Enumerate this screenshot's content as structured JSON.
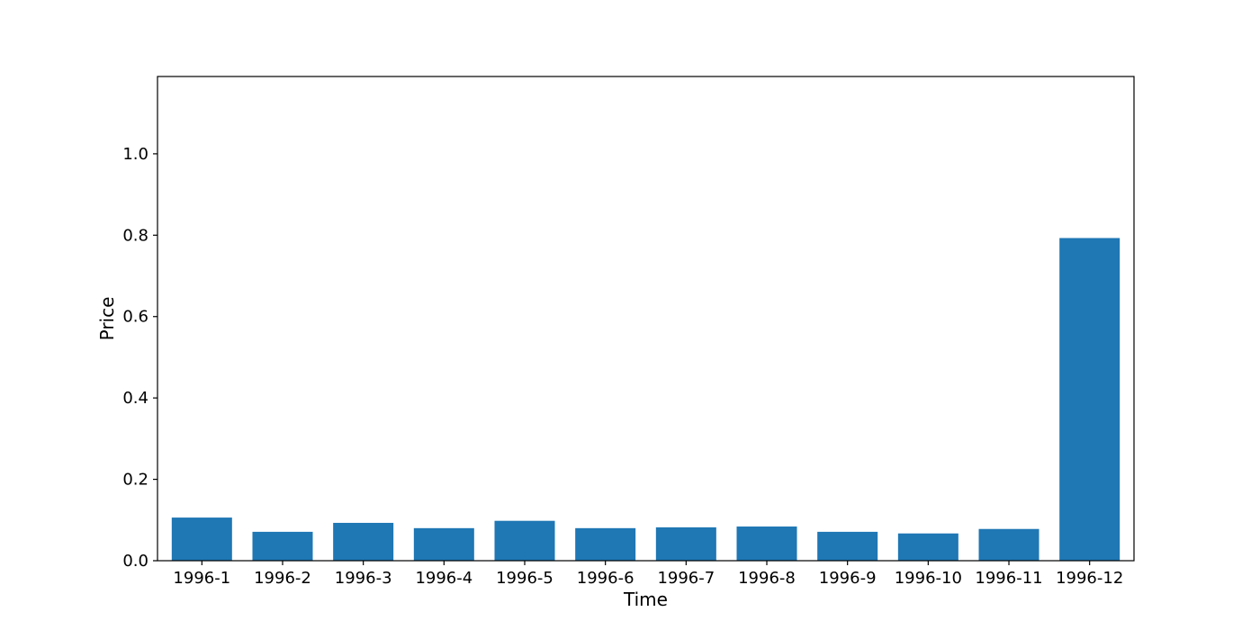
{
  "chart_data": {
    "type": "bar",
    "title": "",
    "xlabel": "Time",
    "ylabel": "Price",
    "categories": [
      "1996-1",
      "1996-2",
      "1996-3",
      "1996-4",
      "1996-5",
      "1996-6",
      "1996-7",
      "1996-8",
      "1996-9",
      "1996-10",
      "1996-11",
      "1996-12"
    ],
    "values": [
      0.106,
      0.071,
      0.093,
      0.08,
      0.098,
      0.08,
      0.082,
      0.084,
      0.071,
      0.067,
      0.078,
      0.793
    ],
    "ylim": [
      0,
      1.19
    ],
    "yticks": [
      0.0,
      0.2,
      0.4,
      0.6,
      0.8,
      1.0
    ],
    "ytick_labels": [
      "0.0",
      "0.2",
      "0.4",
      "0.6",
      "0.8",
      "1.0"
    ],
    "bar_color": "#1f77b4",
    "grid": false,
    "legend": false
  }
}
